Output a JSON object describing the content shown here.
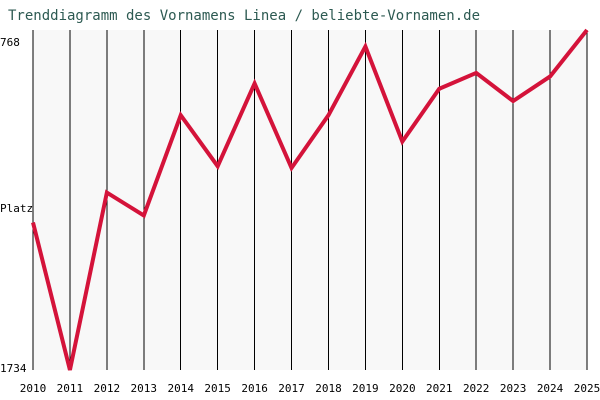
{
  "chart_data": {
    "type": "line",
    "title": "Trenddiagramm des Vornamens Linea / beliebte-Vornamen.de",
    "ylabel": "Platz",
    "ytick_top": "768",
    "ytick_bottom": "1734",
    "ylim": [
      768,
      1734
    ],
    "y_inverted": true,
    "x": [
      "2010",
      "2011",
      "2012",
      "2013",
      "2014",
      "2015",
      "2016",
      "2017",
      "2018",
      "2019",
      "2020",
      "2021",
      "2022",
      "2023",
      "2024",
      "2025"
    ],
    "series": [
      {
        "values": [
          1315,
          1734,
          1230,
          1295,
          1010,
          1155,
          920,
          1160,
          1010,
          815,
          1085,
          935,
          890,
          970,
          900,
          768
        ]
      }
    ],
    "grid": true,
    "colors": {
      "line": "#d4133a",
      "grid": "#000000",
      "plot_bg": "#f8f8f8",
      "title": "#2d5a52",
      "text": "#000000"
    }
  }
}
